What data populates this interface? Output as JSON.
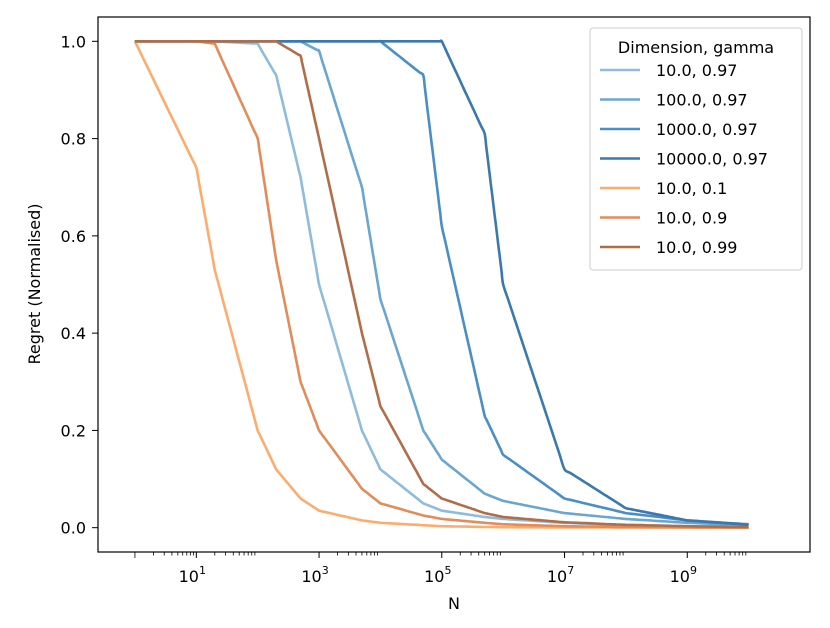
{
  "chart_data": {
    "type": "line",
    "xlabel": "N",
    "ylabel": "Regret (Normalised)",
    "xscale": "log",
    "xlim": [
      0.25,
      100000000000
    ],
    "ylim": [
      -0.05,
      1.05
    ],
    "x_ticks": [
      {
        "value": 10,
        "base": "10",
        "exp": "1"
      },
      {
        "value": 1000,
        "base": "10",
        "exp": "3"
      },
      {
        "value": 100000,
        "base": "10",
        "exp": "5"
      },
      {
        "value": 10000000,
        "base": "10",
        "exp": "7"
      },
      {
        "value": 1000000000,
        "base": "10",
        "exp": "9"
      }
    ],
    "y_ticks": [
      {
        "value": 0.0,
        "label": "0.0"
      },
      {
        "value": 0.2,
        "label": "0.2"
      },
      {
        "value": 0.4,
        "label": "0.4"
      },
      {
        "value": 0.6,
        "label": "0.6"
      },
      {
        "value": 0.8,
        "label": "0.8"
      },
      {
        "value": 1.0,
        "label": "1.0"
      }
    ],
    "grid": false,
    "legend": {
      "title": "Dimension, gamma",
      "placement": "top-right"
    },
    "x": [
      1,
      10,
      20,
      100,
      200,
      500,
      1000,
      5000,
      10000,
      50000,
      100000,
      500000,
      1000000,
      10000000,
      100000000,
      1000000000,
      10000000000
    ],
    "series": [
      {
        "name": "10.0, 0.97",
        "color": "#8fbcdb",
        "values": [
          1.0,
          1.0,
          1.0,
          0.995,
          0.93,
          0.72,
          0.5,
          0.2,
          0.12,
          0.05,
          0.035,
          0.022,
          0.018,
          0.01,
          0.005,
          0.003,
          0.002
        ]
      },
      {
        "name": "100.0, 0.97",
        "color": "#6aa6cf",
        "values": [
          1.0,
          1.0,
          1.0,
          1.0,
          1.0,
          1.0,
          0.98,
          0.7,
          0.47,
          0.2,
          0.14,
          0.07,
          0.055,
          0.03,
          0.018,
          0.01,
          0.005
        ]
      },
      {
        "name": "1000.0, 0.97",
        "color": "#4a8ec4",
        "values": [
          1.0,
          1.0,
          1.0,
          1.0,
          1.0,
          1.0,
          1.0,
          1.0,
          1.0,
          0.93,
          0.62,
          0.23,
          0.15,
          0.06,
          0.03,
          0.015,
          0.007
        ]
      },
      {
        "name": "10000.0, 0.97",
        "color": "#3a78ad",
        "values": [
          1.0,
          1.0,
          1.0,
          1.0,
          1.0,
          1.0,
          1.0,
          1.0,
          1.0,
          1.0,
          1.0,
          0.81,
          0.5,
          0.12,
          0.04,
          0.015,
          0.006
        ]
      },
      {
        "name": "10.0, 0.1",
        "color": "#fbad70",
        "values": [
          1.0,
          0.74,
          0.53,
          0.2,
          0.12,
          0.06,
          0.035,
          0.015,
          0.01,
          0.005,
          0.003,
          0.0015,
          0.001,
          0.0005,
          0.0002,
          0.0001,
          0.0
        ]
      },
      {
        "name": "10.0, 0.9",
        "color": "#e08d5a",
        "values": [
          1.0,
          1.0,
          0.995,
          0.8,
          0.55,
          0.3,
          0.2,
          0.08,
          0.05,
          0.025,
          0.018,
          0.01,
          0.007,
          0.003,
          0.0015,
          0.0007,
          0.0003
        ]
      },
      {
        "name": "10.0, 0.99",
        "color": "#b06e48",
        "values": [
          1.0,
          1.0,
          1.0,
          1.0,
          1.0,
          0.97,
          0.8,
          0.4,
          0.25,
          0.09,
          0.06,
          0.03,
          0.022,
          0.011,
          0.006,
          0.003,
          0.001
        ]
      }
    ]
  }
}
